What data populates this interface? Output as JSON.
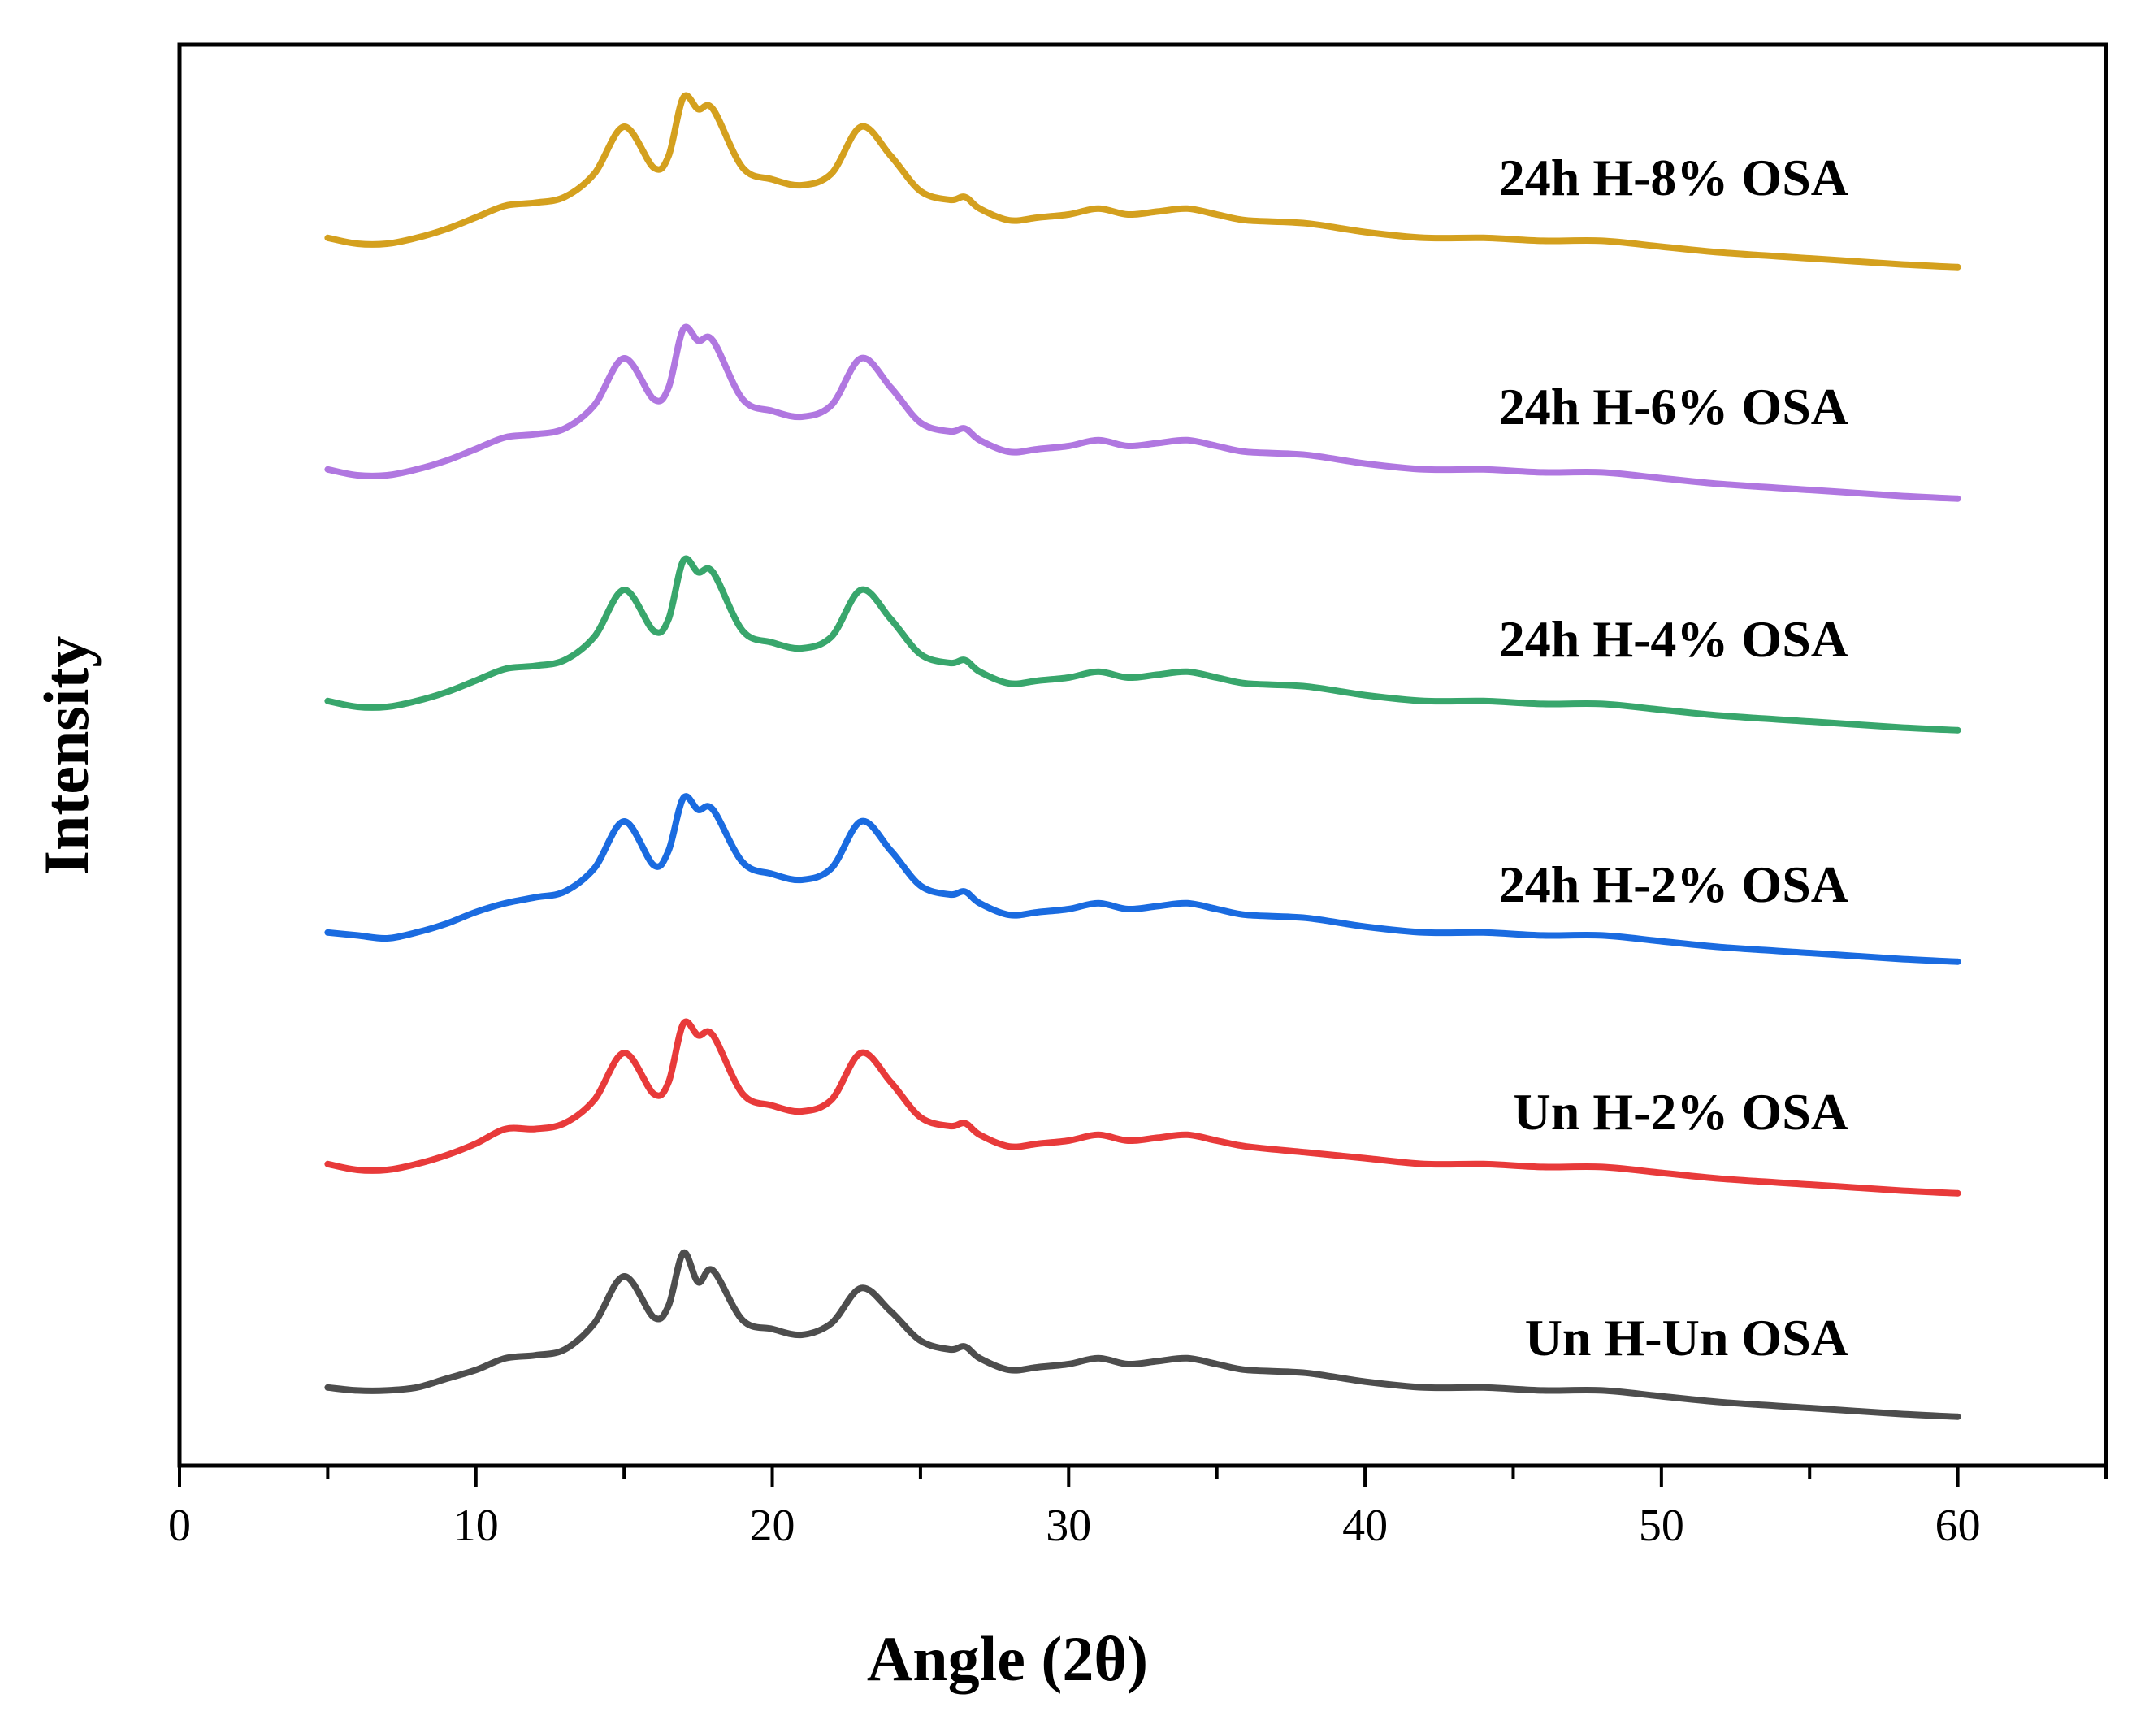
{
  "chart_data": {
    "type": "line",
    "title": "",
    "xlabel": "Angle (2θ)",
    "ylabel": "Intensity",
    "xlim": [
      0,
      65
    ],
    "xticks": [
      0,
      10,
      20,
      30,
      40,
      50,
      60
    ],
    "xtick_labels": [
      "0",
      "10",
      "20",
      "30",
      "40",
      "50",
      "60"
    ],
    "y_axis_ticks": "none",
    "data_range_x": [
      5,
      60
    ],
    "legend": "inline labels to the right of each curve",
    "grid": false,
    "series": [
      {
        "name": "Un H-Un OSA",
        "color": "#4d4d4d",
        "x": [
          5,
          6,
          7,
          8,
          9,
          10,
          11,
          12,
          13,
          14,
          15,
          16,
          16.5,
          17,
          17.5,
          18,
          19,
          20,
          21,
          22,
          23,
          24,
          25,
          26,
          26.5,
          27,
          28,
          29,
          30,
          31,
          32,
          33,
          34,
          35,
          36,
          38,
          40,
          42,
          44,
          46,
          48,
          50,
          52,
          55,
          58,
          60
        ],
        "y": [
          2,
          1,
          1,
          2,
          5,
          8,
          12,
          13,
          15,
          24,
          40,
          26,
          30,
          48,
          38,
          42,
          25,
          22,
          20,
          24,
          36,
          28,
          18,
          15,
          16,
          12,
          8,
          9,
          10,
          12,
          10,
          11,
          12,
          10,
          8,
          7,
          4,
          2,
          2,
          1,
          1,
          -1,
          -3,
          -5,
          -7,
          -8
        ]
      },
      {
        "name": "Un H-2% OSA",
        "color": "#e83a3a",
        "x": [
          5,
          6,
          7,
          8,
          9,
          10,
          11,
          12,
          13,
          14,
          15,
          16,
          16.5,
          17,
          17.5,
          18,
          19,
          20,
          21,
          22,
          23,
          24,
          25,
          26,
          26.5,
          27,
          28,
          29,
          30,
          31,
          32,
          33,
          34,
          35,
          36,
          38,
          40,
          42,
          44,
          46,
          48,
          50,
          52,
          55,
          58,
          60
        ],
        "y": [
          2,
          0,
          0,
          2,
          5,
          9,
          14,
          14,
          16,
          24,
          40,
          26,
          30,
          50,
          46,
          46,
          26,
          22,
          20,
          24,
          40,
          30,
          18,
          15,
          16,
          12,
          8,
          9,
          10,
          12,
          10,
          11,
          12,
          10,
          8,
          6,
          4,
          2,
          2,
          1,
          1,
          -1,
          -3,
          -5,
          -7,
          -8
        ]
      },
      {
        "name": "24h H-2% OSA",
        "color": "#1a6be0",
        "x": [
          5,
          6,
          7,
          8,
          9,
          10,
          11,
          12,
          13,
          14,
          15,
          16,
          16.5,
          17,
          17.5,
          18,
          19,
          20,
          21,
          22,
          23,
          24,
          25,
          26,
          26.5,
          27,
          28,
          29,
          30,
          31,
          32,
          33,
          34,
          35,
          36,
          38,
          40,
          42,
          44,
          46,
          48,
          50,
          52,
          55,
          58,
          60
        ],
        "y": [
          2,
          1,
          0,
          2,
          5,
          9,
          12,
          14,
          16,
          24,
          40,
          25,
          30,
          48,
          44,
          44,
          26,
          22,
          20,
          24,
          40,
          30,
          18,
          15,
          16,
          12,
          8,
          9,
          10,
          12,
          10,
          11,
          12,
          10,
          8,
          7,
          4,
          2,
          2,
          1,
          1,
          -1,
          -3,
          -5,
          -7,
          -8
        ]
      },
      {
        "name": "24h H-4% OSA",
        "color": "#38a66c",
        "x": [
          5,
          6,
          7,
          8,
          9,
          10,
          11,
          12,
          13,
          14,
          15,
          16,
          16.5,
          17,
          17.5,
          18,
          19,
          20,
          21,
          22,
          23,
          24,
          25,
          26,
          26.5,
          27,
          28,
          29,
          30,
          31,
          32,
          33,
          34,
          35,
          36,
          38,
          40,
          42,
          44,
          46,
          48,
          50,
          52,
          55,
          58,
          60
        ],
        "y": [
          2,
          0,
          0,
          2,
          5,
          9,
          13,
          14,
          16,
          24,
          40,
          26,
          30,
          50,
          46,
          46,
          26,
          22,
          20,
          24,
          40,
          30,
          18,
          15,
          16,
          12,
          8,
          9,
          10,
          12,
          10,
          11,
          12,
          10,
          8,
          7,
          4,
          2,
          2,
          1,
          1,
          -1,
          -3,
          -5,
          -7,
          -8
        ]
      },
      {
        "name": "24h H-6% OSA",
        "color": "#b077e0",
        "x": [
          5,
          6,
          7,
          8,
          9,
          10,
          11,
          12,
          13,
          14,
          15,
          16,
          16.5,
          17,
          17.5,
          18,
          19,
          20,
          21,
          22,
          23,
          24,
          25,
          26,
          26.5,
          27,
          28,
          29,
          30,
          31,
          32,
          33,
          34,
          35,
          36,
          38,
          40,
          42,
          44,
          46,
          48,
          50,
          52,
          55,
          58,
          60
        ],
        "y": [
          2,
          0,
          0,
          2,
          5,
          9,
          13,
          14,
          16,
          24,
          40,
          26,
          30,
          50,
          46,
          46,
          26,
          22,
          20,
          24,
          40,
          30,
          18,
          15,
          16,
          12,
          8,
          9,
          10,
          12,
          10,
          11,
          12,
          10,
          8,
          7,
          4,
          2,
          2,
          1,
          1,
          -1,
          -3,
          -5,
          -7,
          -8
        ]
      },
      {
        "name": "24h H-8% OSA",
        "color": "#d4a01e",
        "x": [
          5,
          6,
          7,
          8,
          9,
          10,
          11,
          12,
          13,
          14,
          15,
          16,
          16.5,
          17,
          17.5,
          18,
          19,
          20,
          21,
          22,
          23,
          24,
          25,
          26,
          26.5,
          27,
          28,
          29,
          30,
          31,
          32,
          33,
          34,
          35,
          36,
          38,
          40,
          42,
          44,
          46,
          48,
          50,
          52,
          55,
          58,
          60
        ],
        "y": [
          2,
          0,
          0,
          2,
          5,
          9,
          13,
          14,
          16,
          24,
          40,
          26,
          30,
          50,
          46,
          46,
          26,
          22,
          20,
          24,
          40,
          30,
          18,
          15,
          16,
          12,
          8,
          9,
          10,
          12,
          10,
          11,
          12,
          10,
          8,
          7,
          4,
          2,
          2,
          1,
          1,
          -1,
          -3,
          -5,
          -7,
          -8
        ]
      }
    ]
  }
}
